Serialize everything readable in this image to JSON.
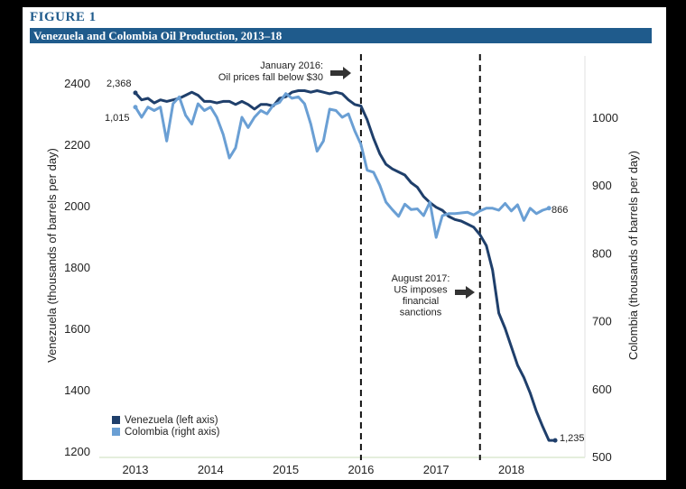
{
  "figure": {
    "label": "FIGURE 1",
    "title": "Venezuela and Colombia Oil Production, 2013–18"
  },
  "colors": {
    "venezuela": "#1f3f6b",
    "colombia": "#6a9fd4",
    "title_bar": "#1f5b8c"
  },
  "chart_data": {
    "type": "line",
    "title": "Venezuela and Colombia Oil Production, 2013–18",
    "x_ticks": [
      "2013",
      "2014",
      "2015",
      "2016",
      "2017",
      "2018"
    ],
    "y_left": {
      "label": "Venezuela (thousands of barrels per day)",
      "range": [
        1200,
        2500
      ],
      "ticks": [
        1200,
        1400,
        1600,
        1800,
        2000,
        2200,
        2400
      ]
    },
    "y_right": {
      "label": "Colombia (thousands of barrels per day)",
      "range": [
        500,
        1100
      ],
      "ticks": [
        500,
        600,
        700,
        800,
        900,
        1000
      ]
    },
    "legend_position": "bottom-left",
    "series": [
      {
        "name": "Venezuela (left axis)",
        "axis": "left",
        "x": [
          2013.0,
          2013.083,
          2013.167,
          2013.25,
          2013.333,
          2013.417,
          2013.5,
          2013.583,
          2013.667,
          2013.75,
          2013.833,
          2013.917,
          2014.0,
          2014.083,
          2014.167,
          2014.25,
          2014.333,
          2014.417,
          2014.5,
          2014.583,
          2014.667,
          2014.75,
          2014.833,
          2014.917,
          2015.0,
          2015.083,
          2015.167,
          2015.25,
          2015.333,
          2015.417,
          2015.5,
          2015.583,
          2015.667,
          2015.75,
          2015.833,
          2015.917,
          2016.0,
          2016.083,
          2016.167,
          2016.25,
          2016.333,
          2016.417,
          2016.5,
          2016.583,
          2016.667,
          2016.75,
          2016.833,
          2016.917,
          2017.0,
          2017.083,
          2017.167,
          2017.25,
          2017.333,
          2017.417,
          2017.5,
          2017.583,
          2017.667,
          2017.75,
          2017.833,
          2017.917,
          2018.0,
          2018.083,
          2018.167,
          2018.25,
          2018.333,
          2018.417,
          2018.5,
          2018.583
        ],
        "values": [
          2368,
          2345,
          2350,
          2335,
          2345,
          2340,
          2345,
          2350,
          2360,
          2370,
          2360,
          2340,
          2340,
          2335,
          2340,
          2340,
          2330,
          2340,
          2330,
          2315,
          2330,
          2330,
          2325,
          2350,
          2355,
          2370,
          2375,
          2375,
          2370,
          2375,
          2370,
          2365,
          2370,
          2365,
          2345,
          2330,
          2325,
          2280,
          2220,
          2170,
          2135,
          2120,
          2110,
          2100,
          2075,
          2060,
          2030,
          2010,
          1995,
          1985,
          1965,
          1955,
          1950,
          1940,
          1930,
          1905,
          1870,
          1790,
          1650,
          1600,
          1540,
          1480,
          1440,
          1390,
          1330,
          1280,
          1235,
          1235
        ]
      },
      {
        "name": "Colombia (right axis)",
        "axis": "right",
        "x": [
          2013.0,
          2013.083,
          2013.167,
          2013.25,
          2013.333,
          2013.417,
          2013.5,
          2013.583,
          2013.667,
          2013.75,
          2013.833,
          2013.917,
          2014.0,
          2014.083,
          2014.167,
          2014.25,
          2014.333,
          2014.417,
          2014.5,
          2014.583,
          2014.667,
          2014.75,
          2014.833,
          2014.917,
          2015.0,
          2015.083,
          2015.167,
          2015.25,
          2015.333,
          2015.417,
          2015.5,
          2015.583,
          2015.667,
          2015.75,
          2015.833,
          2015.917,
          2016.0,
          2016.083,
          2016.167,
          2016.25,
          2016.333,
          2016.417,
          2016.5,
          2016.583,
          2016.667,
          2016.75,
          2016.833,
          2016.917,
          2017.0,
          2017.083,
          2017.167,
          2017.25,
          2017.333,
          2017.417,
          2017.5,
          2017.583,
          2017.667,
          2017.75,
          2017.833,
          2017.917,
          2018.0,
          2018.083,
          2018.167,
          2018.25,
          2018.333,
          2018.417,
          2018.5
        ],
        "values": [
          1015,
          1000,
          1015,
          1010,
          1015,
          965,
          1020,
          1030,
          1003,
          990,
          1020,
          1010,
          1015,
          1000,
          975,
          940,
          955,
          1000,
          985,
          1000,
          1010,
          1005,
          1018,
          1022,
          1035,
          1028,
          1030,
          1020,
          990,
          950,
          965,
          1012,
          1010,
          1000,
          1005,
          980,
          960,
          922,
          919,
          900,
          875,
          864,
          854,
          872,
          864,
          865,
          855,
          875,
          823,
          855,
          858,
          858,
          859,
          860,
          856,
          862,
          866,
          866,
          863,
          873,
          862,
          871,
          848,
          866,
          858,
          863,
          866
        ]
      }
    ],
    "annotations": [
      {
        "x": 2016.0,
        "lines": [
          "January 2016:",
          "Oil prices fall below $30"
        ]
      },
      {
        "x": 2017.583,
        "lines": [
          "August 2017:",
          "US imposes",
          "financial",
          "sanctions"
        ]
      }
    ],
    "data_labels": [
      {
        "series": "Venezuela (left axis)",
        "text": "2,368",
        "position": "start"
      },
      {
        "series": "Colombia (right axis)",
        "text": "1,015",
        "position": "start"
      },
      {
        "series": "Colombia (right axis)",
        "text": "866",
        "position": "end"
      },
      {
        "series": "Venezuela (left axis)",
        "text": "1,235",
        "position": "end"
      }
    ]
  }
}
